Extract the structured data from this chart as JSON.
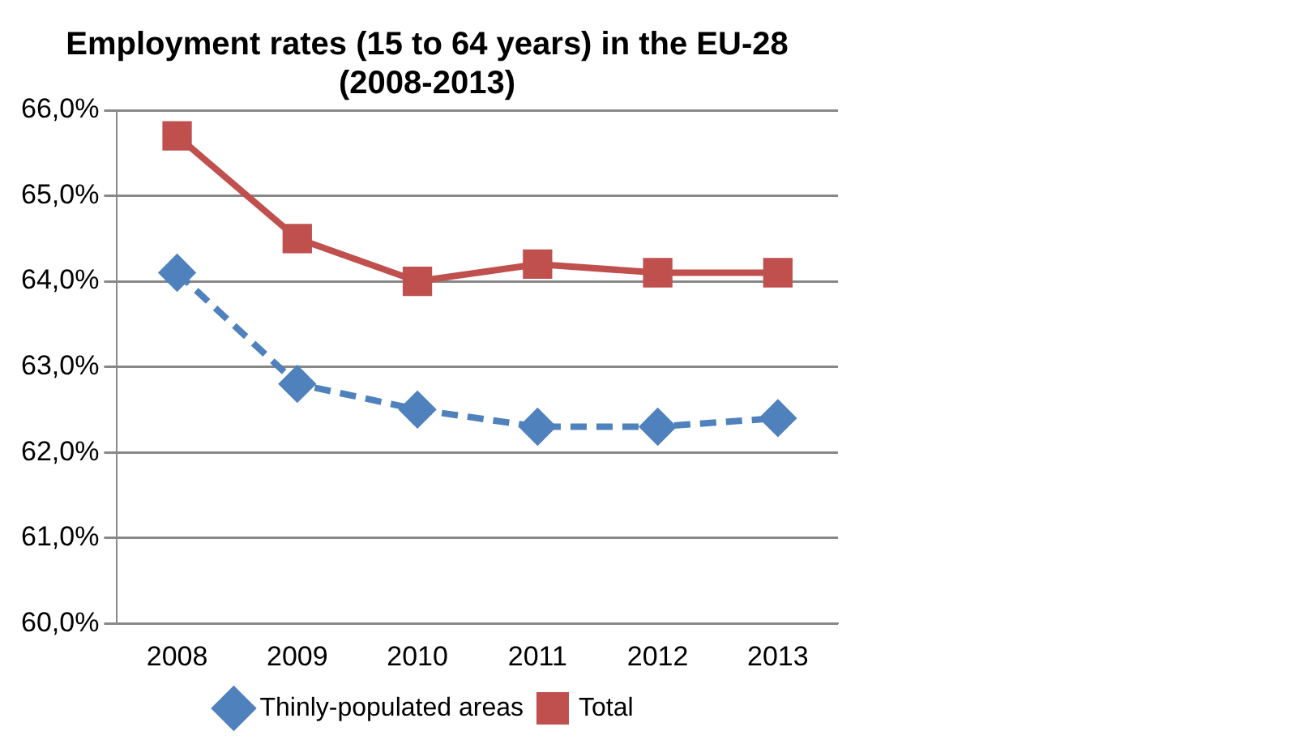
{
  "chart_data": {
    "type": "line",
    "title": "Employment rates (15 to 64 years) in the EU-28 (2008-2013)",
    "categories": [
      "2008",
      "2009",
      "2010",
      "2011",
      "2012",
      "2013"
    ],
    "series": [
      {
        "name": "Thinly-populated areas",
        "color": "#4f81bd",
        "values": [
          64.1,
          62.8,
          62.5,
          62.3,
          62.3,
          62.4
        ],
        "marker": "diamond",
        "line_style": "dashed"
      },
      {
        "name": "Total",
        "color": "#c0504d",
        "values": [
          65.7,
          64.5,
          64.0,
          64.2,
          64.1,
          64.1
        ],
        "marker": "square",
        "line_style": "solid"
      }
    ],
    "ylim": [
      60,
      66
    ],
    "yticks": [
      {
        "value": 60,
        "label": "60,0%"
      },
      {
        "value": 61,
        "label": "61,0%"
      },
      {
        "value": 62,
        "label": "62,0%"
      },
      {
        "value": 63,
        "label": "63,0%"
      },
      {
        "value": 64,
        "label": "64,0%"
      },
      {
        "value": 65,
        "label": "65,0%"
      },
      {
        "value": 66,
        "label": "66,0%"
      }
    ],
    "grid": "y",
    "legend": "bottom"
  }
}
